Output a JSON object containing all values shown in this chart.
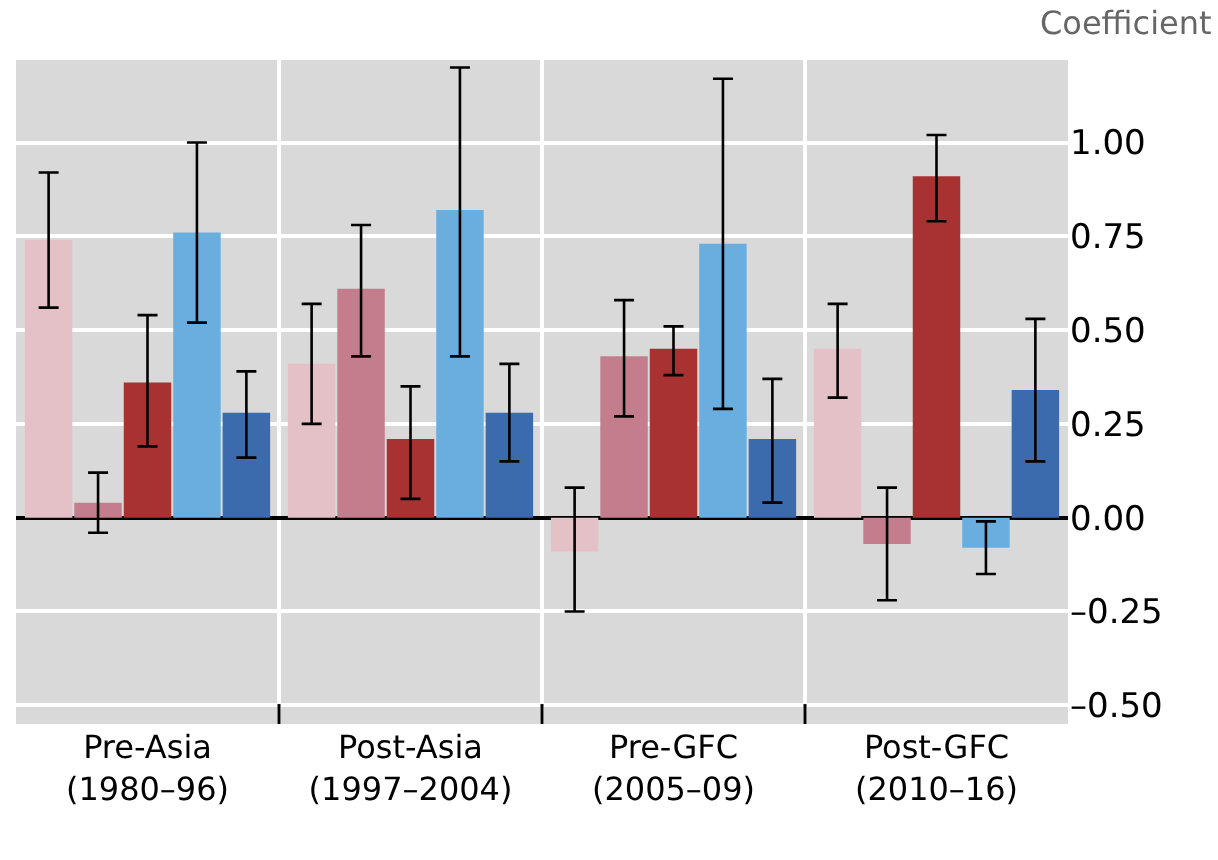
{
  "chart_data": {
    "type": "bar",
    "ylabel": "Coefficient",
    "categories": [
      "Pre-Asia\n(1980–96)",
      "Post-Asia\n(1997–2004)",
      "Pre-GFC\n(2005–09)",
      "Post-GFC\n(2010–16)"
    ],
    "series": [
      {
        "color": "#e3c1c6",
        "values": [
          0.74,
          0.41,
          -0.09,
          0.45
        ],
        "errors": [
          [
            0.56,
            0.92
          ],
          [
            0.25,
            0.57
          ],
          [
            -0.25,
            0.08
          ],
          [
            0.32,
            0.57
          ]
        ]
      },
      {
        "color": "#c47d8c",
        "values": [
          0.04,
          0.61,
          0.43,
          -0.07
        ],
        "errors": [
          [
            -0.04,
            0.12
          ],
          [
            0.43,
            0.78
          ],
          [
            0.27,
            0.58
          ],
          [
            -0.22,
            0.08
          ]
        ]
      },
      {
        "color": "#a83232",
        "values": [
          0.36,
          0.21,
          0.45,
          0.91
        ],
        "errors": [
          [
            0.19,
            0.54
          ],
          [
            0.05,
            0.35
          ],
          [
            0.38,
            0.51
          ],
          [
            0.79,
            1.02
          ]
        ]
      },
      {
        "color": "#6aaee0",
        "values": [
          0.76,
          0.82,
          0.73,
          -0.08
        ],
        "errors": [
          [
            0.52,
            1.0
          ],
          [
            0.43,
            1.2
          ],
          [
            0.29,
            1.17
          ],
          [
            -0.15,
            -0.01
          ]
        ]
      },
      {
        "color": "#3b6aad",
        "values": [
          0.28,
          0.28,
          0.21,
          0.34
        ],
        "errors": [
          [
            0.16,
            0.39
          ],
          [
            0.15,
            0.41
          ],
          [
            0.04,
            0.37
          ],
          [
            0.15,
            0.53
          ]
        ]
      }
    ],
    "ylim": [
      -0.55,
      1.22
    ],
    "yticks": [
      {
        "value": -0.5,
        "label": "–0.50"
      },
      {
        "value": -0.25,
        "label": "–0.25"
      },
      {
        "value": 0,
        "label": "0.00"
      },
      {
        "value": 0.25,
        "label": "0.25"
      },
      {
        "value": 0.5,
        "label": "0.50"
      },
      {
        "value": 0.75,
        "label": "0.75"
      },
      {
        "value": 1,
        "label": "1.00"
      }
    ],
    "grid": true
  }
}
